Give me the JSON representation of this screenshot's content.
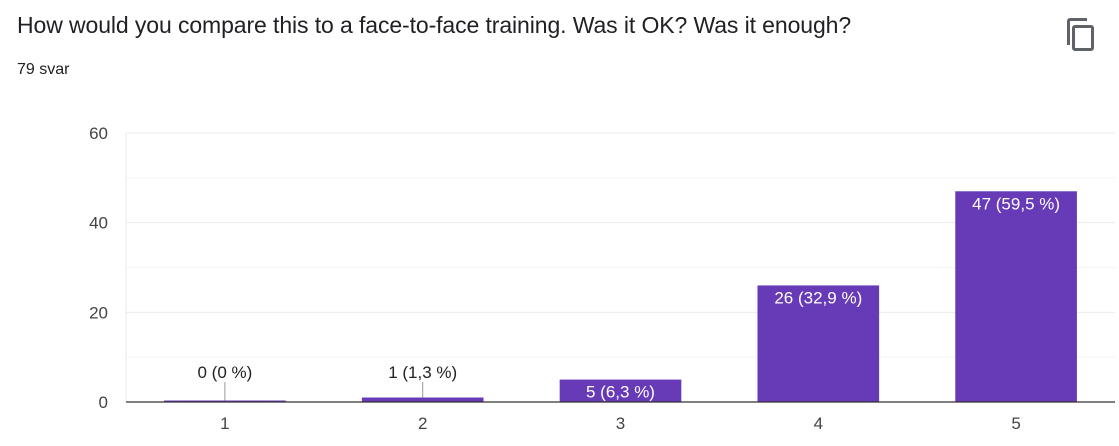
{
  "header": {
    "question": "How would you compare this to a face-to-face training. Was it OK? Was it enough?",
    "response_count": "79 svar",
    "copy_icon": "copy-icon"
  },
  "colors": {
    "bar": "#673ab7",
    "grid": "#ebebeb",
    "axis": "#333333",
    "label_inside": "#ffffff",
    "label_outside": "#222222"
  },
  "chart_data": {
    "type": "bar",
    "categories": [
      "1",
      "2",
      "3",
      "4",
      "5"
    ],
    "values": [
      0,
      1,
      5,
      26,
      47
    ],
    "data_labels": [
      "0 (0 %)",
      "1 (1,3 %)",
      "5 (6,3 %)",
      "26 (32,9 %)",
      "47 (59,5 %)"
    ],
    "yticks": [
      0,
      20,
      40,
      60
    ],
    "ylim": [
      0,
      60
    ],
    "grid": true,
    "legend": false
  }
}
